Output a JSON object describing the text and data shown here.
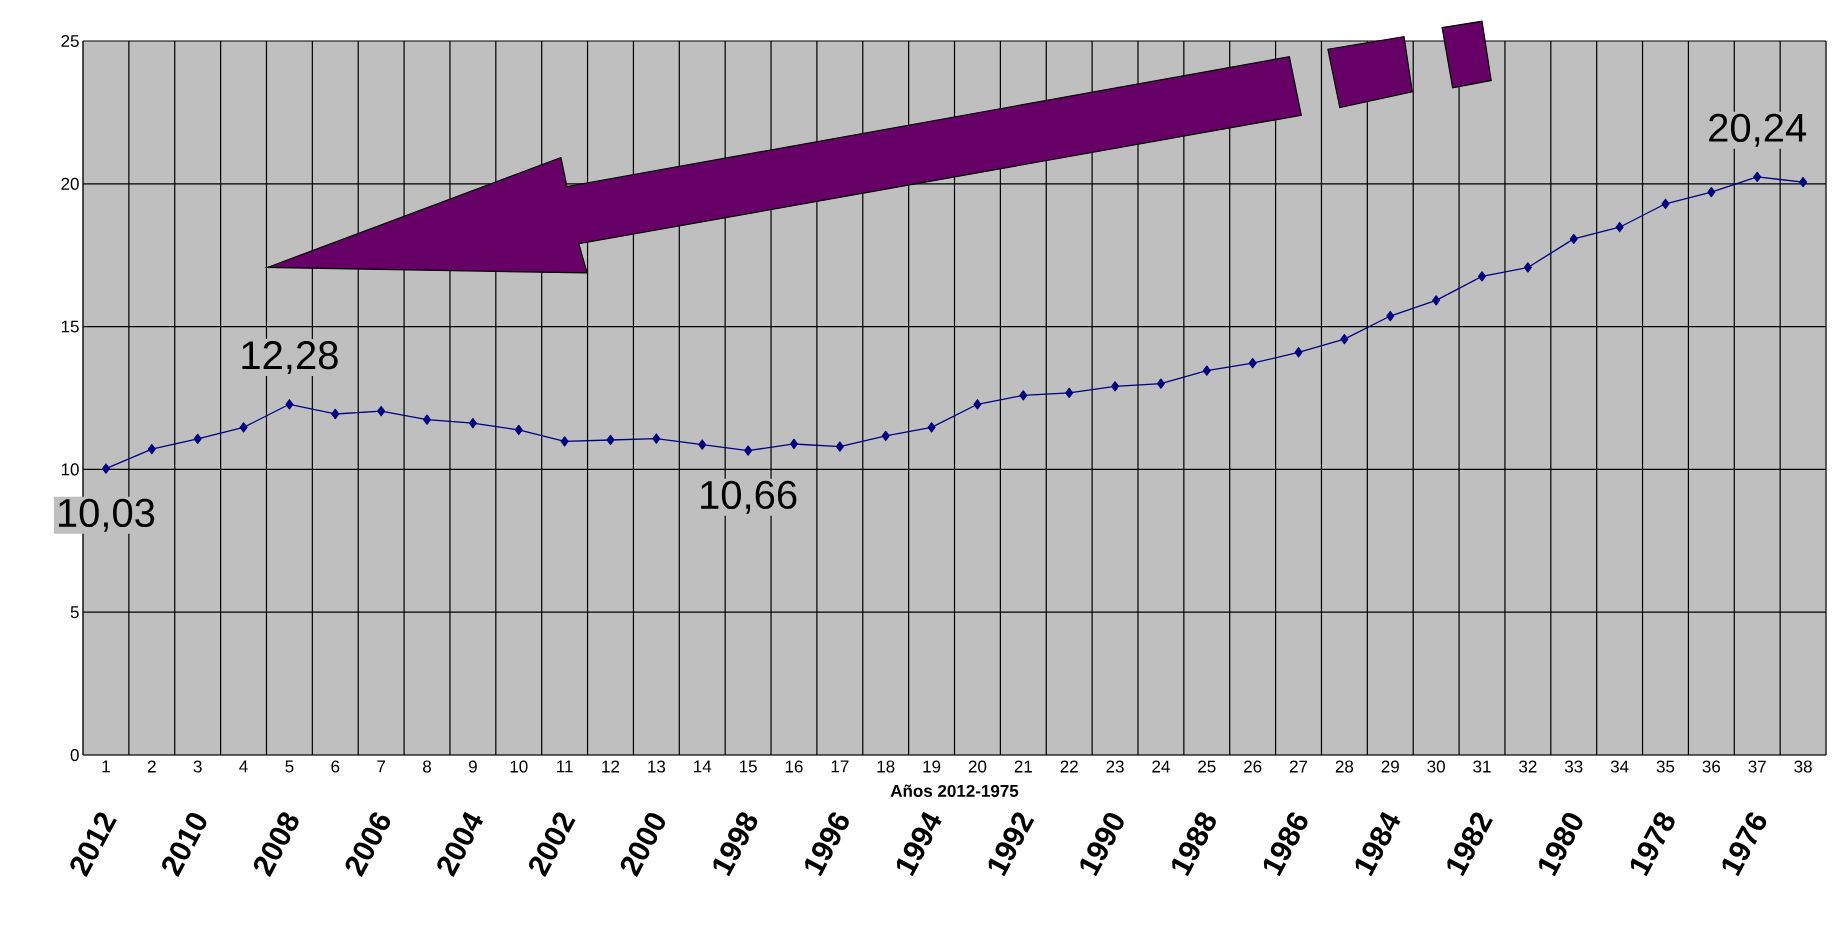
{
  "chart_data": {
    "type": "line",
    "xlabel": "Años 2012-1975",
    "categories": [
      "1",
      "2",
      "3",
      "4",
      "5",
      "6",
      "7",
      "8",
      "9",
      "10",
      "11",
      "12",
      "13",
      "14",
      "15",
      "16",
      "17",
      "18",
      "19",
      "20",
      "21",
      "22",
      "23",
      "24",
      "25",
      "26",
      "27",
      "28",
      "29",
      "30",
      "31",
      "32",
      "33",
      "34",
      "35",
      "36",
      "37",
      "38"
    ],
    "series": [
      {
        "color": "#000080",
        "values": [
          10.03,
          10.71,
          11.07,
          11.47,
          12.28,
          11.94,
          12.04,
          11.74,
          11.62,
          11.38,
          10.98,
          11.03,
          11.08,
          10.87,
          10.66,
          10.89,
          10.8,
          11.17,
          11.47,
          12.28,
          12.59,
          12.68,
          12.91,
          13.0,
          13.46,
          13.72,
          14.1,
          14.56,
          15.37,
          15.92,
          16.76,
          17.07,
          18.07,
          18.48,
          19.3,
          19.71,
          20.24,
          20.06
        ],
        "value_labels": [
          "10,03",
          null,
          null,
          null,
          "12,28",
          null,
          null,
          null,
          null,
          null,
          null,
          null,
          null,
          null,
          "10,66",
          null,
          null,
          null,
          null,
          null,
          null,
          null,
          null,
          null,
          null,
          null,
          null,
          null,
          null,
          null,
          null,
          null,
          null,
          null,
          null,
          null,
          "20,24",
          null
        ]
      }
    ],
    "annotations": [
      "2012",
      "2010",
      "2008",
      "2006",
      "2004",
      "2002",
      "2000",
      "1998",
      "1996",
      "1994",
      "1992",
      "1990",
      "1988",
      "1986",
      "1984",
      "1982",
      "1980",
      "1978",
      "1976"
    ],
    "ylim": [
      0,
      25
    ],
    "yticks": [
      0,
      5,
      10,
      15,
      20,
      25
    ],
    "grid": true,
    "marker": "diamond",
    "line_style": "solid"
  }
}
